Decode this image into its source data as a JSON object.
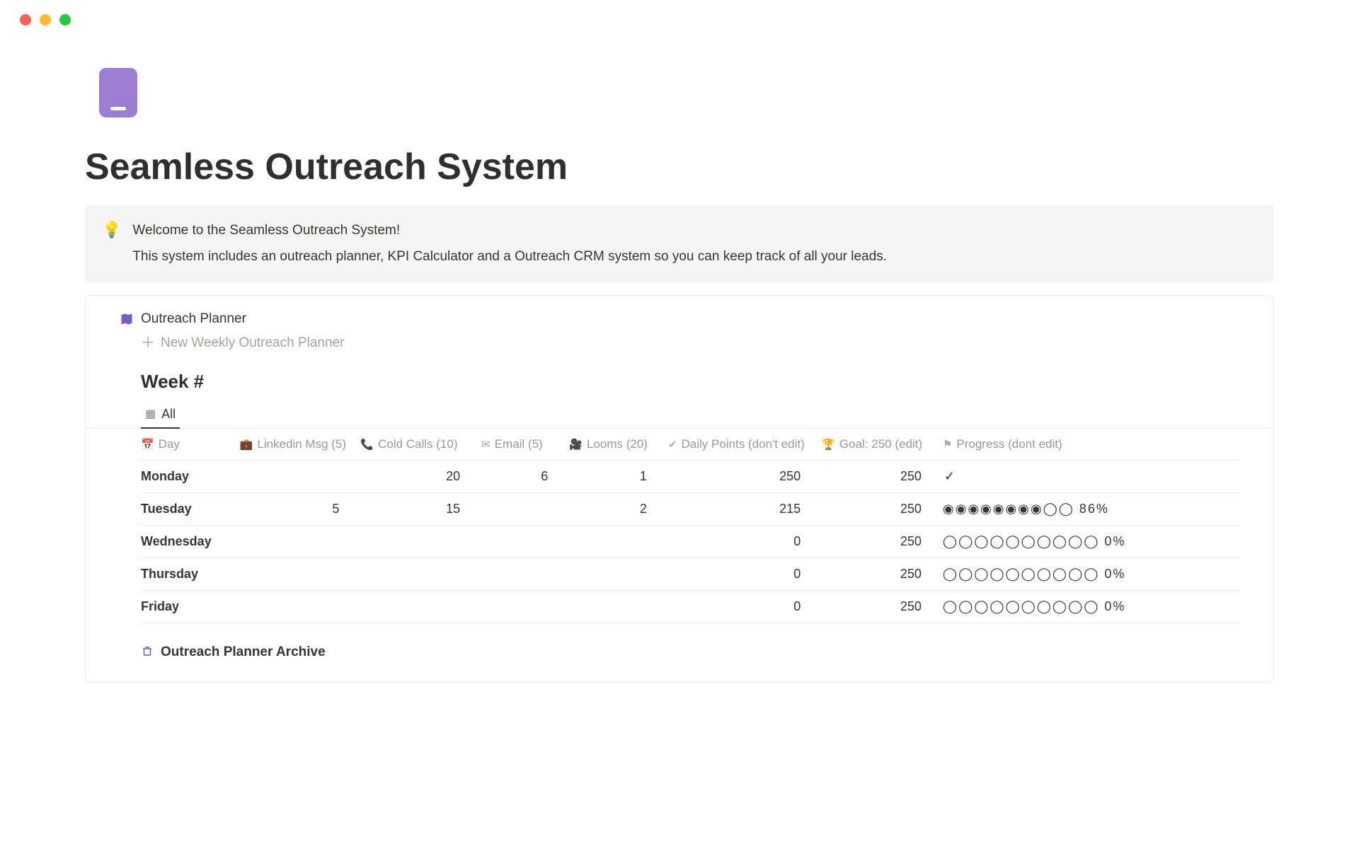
{
  "page": {
    "title": "Seamless Outreach System",
    "icon_color": "#9b7dd4"
  },
  "callout": {
    "icon": "💡",
    "line1": "Welcome to the Seamless Outreach System!",
    "line2": "This system includes an outreach planner, KPI Calculator and a Outreach CRM system so you can keep track of all your leads."
  },
  "planner": {
    "title": "Outreach Planner",
    "new_label": "New Weekly Outreach Planner",
    "week_heading": "Week #",
    "tab_all": "All",
    "columns": {
      "day": "Day",
      "linkedin": "Linkedin Msg (5)",
      "cold_calls": "Cold Calls (10)",
      "email": "Email (5)",
      "looms": "Looms (20)",
      "daily_points": "Daily Points (don't edit)",
      "goal": "Goal: 250 (edit)",
      "progress": "Progress (dont edit)"
    },
    "rows": [
      {
        "day": "Monday",
        "linkedin": "",
        "cold": "20",
        "email": "6",
        "looms": "1",
        "daily": "250",
        "goal": "250",
        "progress": "✓",
        "progress_is_check": true
      },
      {
        "day": "Tuesday",
        "linkedin": "5",
        "cold": "15",
        "email": "",
        "looms": "2",
        "daily": "215",
        "goal": "250",
        "progress": "◉◉◉◉◉◉◉◉◯◯ 86%"
      },
      {
        "day": "Wednesday",
        "linkedin": "",
        "cold": "",
        "email": "",
        "looms": "",
        "daily": "0",
        "goal": "250",
        "progress": "◯◯◯◯◯◯◯◯◯◯ 0%"
      },
      {
        "day": "Thursday",
        "linkedin": "",
        "cold": "",
        "email": "",
        "looms": "",
        "daily": "0",
        "goal": "250",
        "progress": "◯◯◯◯◯◯◯◯◯◯ 0%"
      },
      {
        "day": "Friday",
        "linkedin": "",
        "cold": "",
        "email": "",
        "looms": "",
        "daily": "0",
        "goal": "250",
        "progress": "◯◯◯◯◯◯◯◯◯◯ 0%"
      }
    ],
    "archive_label": "Outreach Planner Archive"
  },
  "style": {
    "accent": "#9b7dd4",
    "text": "#37352f",
    "muted": "#9b9892",
    "callout_bg": "#f5f4f2",
    "border": "#e9e9e7"
  }
}
